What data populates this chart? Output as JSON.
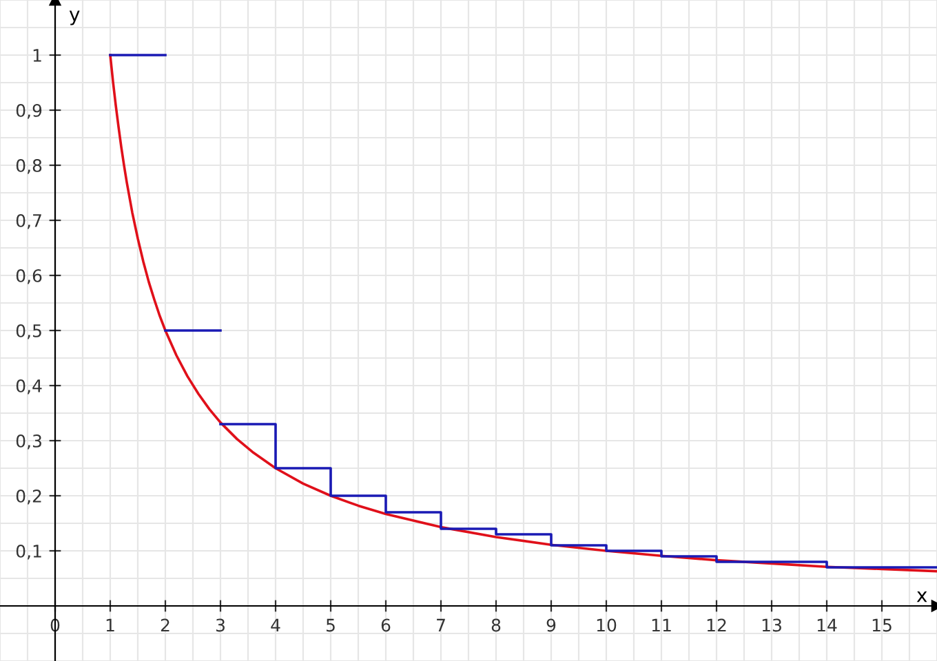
{
  "chart_data": {
    "type": "line",
    "xlabel": "x",
    "ylabel": "y",
    "xlim": [
      -1,
      16
    ],
    "ylim": [
      -0.1,
      1.1
    ],
    "xticks": [
      {
        "value": 0,
        "label": "0"
      },
      1,
      2,
      3,
      4,
      5,
      6,
      7,
      8,
      9,
      10,
      11,
      12,
      13,
      14,
      15
    ],
    "yticks": [
      {
        "value": 0.1,
        "label": "0,1"
      },
      {
        "value": 0.2,
        "label": "0,2"
      },
      {
        "value": 0.3,
        "label": "0,3"
      },
      {
        "value": 0.4,
        "label": "0,4"
      },
      {
        "value": 0.5,
        "label": "0,5"
      },
      {
        "value": 0.6,
        "label": "0,6"
      },
      {
        "value": 0.7,
        "label": "0,7"
      },
      {
        "value": 0.8,
        "label": "0,8"
      },
      {
        "value": 0.9,
        "label": "0,9"
      },
      {
        "value": 1,
        "label": "1"
      }
    ],
    "grid": true,
    "marker": "none",
    "series": [
      {
        "color": "#e0101a",
        "x": [
          1,
          1.05,
          1.1,
          1.15,
          1.2,
          1.25,
          1.3,
          1.4,
          1.5,
          1.6,
          1.7,
          1.8,
          1.9,
          2,
          2.2,
          2.4,
          2.6,
          2.8,
          3,
          3.3,
          3.6,
          4,
          4.5,
          5,
          5.5,
          6,
          7,
          8,
          9,
          10,
          11,
          12,
          13,
          14,
          15,
          16
        ],
        "values": [
          1,
          0.952,
          0.909,
          0.87,
          0.833,
          0.8,
          0.769,
          0.714,
          0.667,
          0.625,
          0.588,
          0.556,
          0.526,
          0.5,
          0.455,
          0.417,
          0.385,
          0.357,
          0.333,
          0.303,
          0.278,
          0.25,
          0.222,
          0.2,
          0.182,
          0.167,
          0.143,
          0.125,
          0.111,
          0.1,
          0.091,
          0.083,
          0.077,
          0.071,
          0.067,
          0.063
        ]
      },
      {
        "color": "#1a1ab4",
        "x": [
          1,
          2
        ],
        "values": [
          1,
          1
        ]
      },
      {
        "color": "#1a1ab4",
        "x": [
          2,
          3
        ],
        "values": [
          0.5,
          0.5
        ]
      },
      {
        "type": "step",
        "color": "#1a1ab4",
        "x": [
          3,
          4,
          5,
          6,
          7,
          8,
          9,
          10,
          11,
          12,
          13,
          14,
          15,
          16
        ],
        "values": [
          0.33,
          0.25,
          0.2,
          0.17,
          0.14,
          0.13,
          0.11,
          0.1,
          0.09,
          0.08,
          0.08,
          0.07,
          0.07,
          0.07
        ]
      }
    ]
  }
}
